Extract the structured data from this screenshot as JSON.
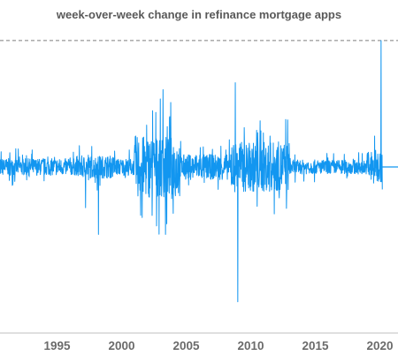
{
  "chart_data": {
    "type": "line",
    "title": "week-over-week change in refinance mortgage apps",
    "xlabel": "",
    "ylabel": "",
    "x_ticks": [
      "1995",
      "2000",
      "2005",
      "2010",
      "2015",
      "2020"
    ],
    "xlim": [
      1990.4,
      2021.5
    ],
    "ylim": [
      -1.0,
      0.9
    ],
    "reference_lines": [
      {
        "style": "dashed",
        "value": 0.9
      },
      {
        "style": "solid-short",
        "value": 0.0,
        "from_x": 2020.0
      }
    ],
    "volatility_profile": [
      {
        "from": 1990.4,
        "to": 1996.5,
        "amp": 0.06
      },
      {
        "from": 1996.5,
        "to": 1999.5,
        "amp": 0.08
      },
      {
        "from": 1999.5,
        "to": 2001.0,
        "amp": 0.06
      },
      {
        "from": 2001.0,
        "to": 2004.5,
        "amp": 0.22
      },
      {
        "from": 2004.5,
        "to": 2008.5,
        "amp": 0.09
      },
      {
        "from": 2008.5,
        "to": 2013.0,
        "amp": 0.18
      },
      {
        "from": 2013.0,
        "to": 2019.0,
        "amp": 0.05
      },
      {
        "from": 2019.0,
        "to": 2020.2,
        "amp": 0.12
      }
    ],
    "spikes": [
      {
        "x": 1997.2,
        "y": 0.3
      },
      {
        "x": 1997.2,
        "y": -0.29
      },
      {
        "x": 1998.2,
        "y": -0.48
      },
      {
        "x": 2001.1,
        "y": 0.22
      },
      {
        "x": 2001.6,
        "y": -0.36
      },
      {
        "x": 2002.4,
        "y": 0.4
      },
      {
        "x": 2002.7,
        "y": -0.42
      },
      {
        "x": 2003.2,
        "y": 0.55
      },
      {
        "x": 2003.4,
        "y": -0.48
      },
      {
        "x": 2003.7,
        "y": 0.35
      },
      {
        "x": 2004.0,
        "y": -0.33
      },
      {
        "x": 2008.8,
        "y": 0.6
      },
      {
        "x": 2009.0,
        "y": -0.96
      },
      {
        "x": 2009.5,
        "y": 0.28
      },
      {
        "x": 2010.5,
        "y": -0.28
      },
      {
        "x": 2011.5,
        "y": 0.22
      },
      {
        "x": 2012.2,
        "y": -0.22
      },
      {
        "x": 2019.6,
        "y": 0.22
      },
      {
        "x": 2020.1,
        "y": 0.9
      },
      {
        "x": 2020.3,
        "y": -0.16
      }
    ],
    "colors": {
      "series": "#1296f0",
      "reference": "#7f7f7f",
      "tick_labels": "#6b6b6b"
    },
    "grid": false,
    "legend": "none"
  }
}
